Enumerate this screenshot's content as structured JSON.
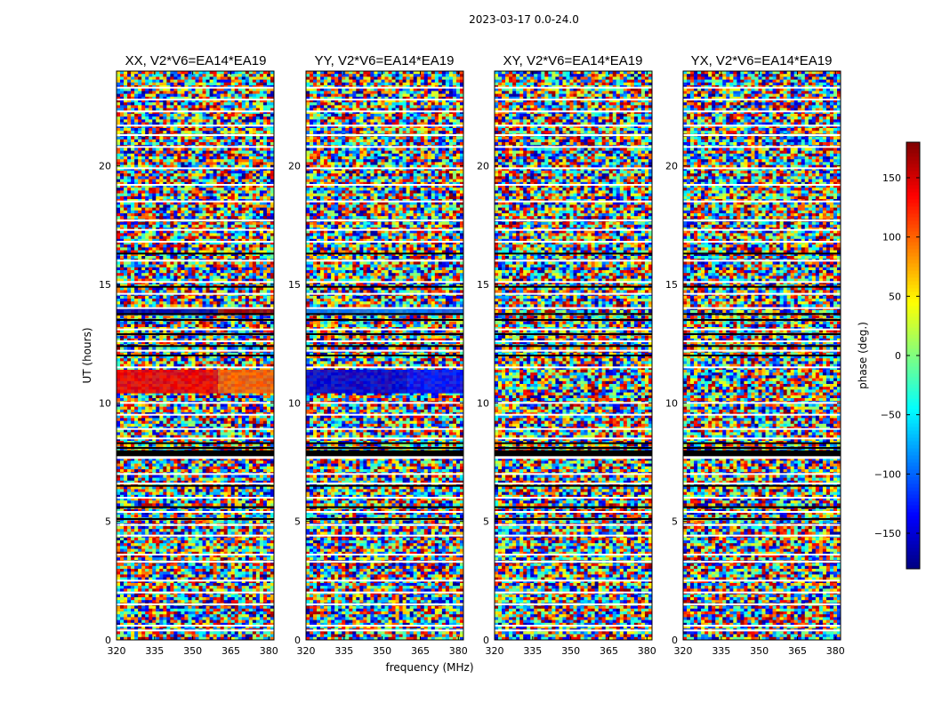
{
  "figure": {
    "suptitle": "2023-03-17 0.0-24.0",
    "xlabel": "frequency (MHz)",
    "ylabel": "UT (hours)"
  },
  "chart_data": {
    "type": "heatmap",
    "title": "2023-03-17 0.0-24.0",
    "xlabel": "frequency (MHz)",
    "ylabel": "UT (hours)",
    "xlim": [
      320,
      382
    ],
    "ylim": [
      0,
      24
    ],
    "xticks": [
      320,
      335,
      350,
      365,
      380
    ],
    "yticks": [
      0,
      5,
      10,
      15,
      20
    ],
    "colormap": "jet",
    "colorbar": {
      "label": "phase (deg.)",
      "range": [
        -180,
        180
      ],
      "ticks": [
        -150,
        -100,
        -50,
        0,
        50,
        100,
        150
      ],
      "colors": [
        "#00007f",
        "#0000ff",
        "#007fff",
        "#00ffff",
        "#7fff7f",
        "#ffff00",
        "#ff7f00",
        "#ff0000",
        "#7f0000"
      ]
    },
    "flagged_white_ut": [
      0.4,
      0.6,
      1.5,
      2.0,
      2.5,
      3.3,
      3.6,
      4.4,
      4.85,
      5.4,
      6.0,
      6.6,
      7.0,
      8.5,
      8.9,
      9.5,
      10.0,
      11.5,
      12.2,
      12.6,
      13.1,
      14.0,
      14.6,
      15.1,
      16.0,
      16.8,
      17.3,
      17.7,
      18.5,
      19.2,
      19.9,
      20.8,
      21.3,
      21.7,
      22.3,
      22.8,
      23.3
    ],
    "flagged_black_ut": [
      5.1,
      5.6,
      6.5,
      7.7,
      8.1,
      8.3,
      12.0,
      12.4,
      12.9,
      13.5,
      13.75,
      14.9,
      16.3
    ],
    "panels": [
      {
        "title": "XX, V2*V6=EA14*EA19",
        "coherent_bands": [
          {
            "ut_range": [
              13.7,
              14.0
            ],
            "freq_range": [
              320,
              360
            ],
            "phase_deg": -165
          },
          {
            "ut_range": [
              13.7,
              14.0
            ],
            "freq_range": [
              360,
              382
            ],
            "phase_deg": 170
          },
          {
            "ut_range": [
              10.4,
              11.4
            ],
            "freq_range": [
              320,
              360
            ],
            "phase_deg": 140
          },
          {
            "ut_range": [
              10.4,
              11.4
            ],
            "freq_range": [
              360,
              382
            ],
            "phase_deg": 100
          }
        ]
      },
      {
        "title": "YY, V2*V6=EA14*EA19",
        "coherent_bands": [
          {
            "ut_range": [
              13.7,
              14.0
            ],
            "freq_range": [
              320,
              360
            ],
            "phase_deg": -90
          },
          {
            "ut_range": [
              13.7,
              14.0
            ],
            "freq_range": [
              360,
              382
            ],
            "phase_deg": -100
          },
          {
            "ut_range": [
              10.4,
              11.4
            ],
            "freq_range": [
              320,
              360
            ],
            "phase_deg": -150
          },
          {
            "ut_range": [
              10.4,
              11.4
            ],
            "freq_range": [
              360,
              382
            ],
            "phase_deg": -130
          }
        ]
      },
      {
        "title": "XY, V2*V6=EA14*EA19",
        "coherent_bands": []
      },
      {
        "title": "YX, V2*V6=EA14*EA19",
        "coherent_bands": []
      }
    ]
  }
}
